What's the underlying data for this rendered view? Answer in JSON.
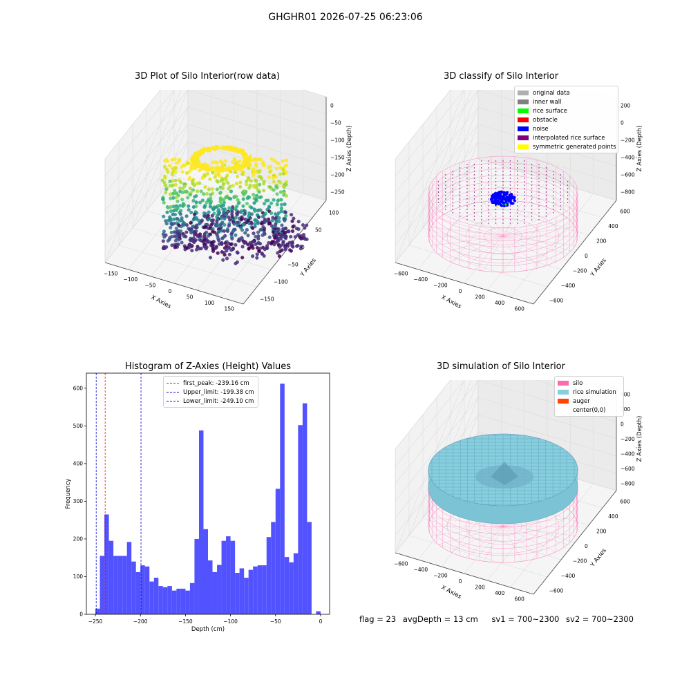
{
  "suptitle": "GHGHR01 2026-07-25 06:23:06",
  "chart_data": [
    {
      "type": "scatter",
      "title": "3D Plot of Silo Interior(row data)",
      "xlabel": "X Axies",
      "ylabel": "Y Axies",
      "zlabel": "Z Axies (Depth)",
      "xticks": [
        "−150",
        "−100",
        "−50",
        "0",
        "50",
        "100",
        "150"
      ],
      "yticks": [
        "−150",
        "−100",
        "−50",
        "0",
        "50",
        "100"
      ],
      "zticks": [
        "−250",
        "−200",
        "−150",
        "−100",
        "−50",
        "0"
      ],
      "xlim": [
        -150,
        150
      ],
      "ylim": [
        -150,
        150
      ],
      "zlim": [
        -260,
        0
      ],
      "colormap": "viridis"
    },
    {
      "type": "scatter",
      "title": "3D classify of Silo Interior",
      "xlabel": "X Axies",
      "ylabel": "Y Axies",
      "zlabel": "Z Axies (Depth)",
      "xticks": [
        "−600",
        "−400",
        "−200",
        "0",
        "200",
        "400",
        "600"
      ],
      "yticks": [
        "−600",
        "−400",
        "−200",
        "0",
        "200",
        "400",
        "600"
      ],
      "zticks": [
        "−800",
        "−600",
        "−400",
        "−200",
        "0",
        "200"
      ],
      "legend": [
        {
          "label": "original data",
          "color": "#b0b0b0"
        },
        {
          "label": "inner wall",
          "color": "#808080"
        },
        {
          "label": "rice surface",
          "color": "#00ff00"
        },
        {
          "label": "obstacle",
          "color": "#ff0000"
        },
        {
          "label": "noise",
          "color": "#0000ff"
        },
        {
          "label": "interpolated rice surface",
          "color": "#800080"
        },
        {
          "label": "symmetric generated points",
          "color": "#ffff00"
        }
      ],
      "legend_position": "top-right",
      "wall_color": "#ff69b4"
    },
    {
      "type": "bar",
      "title": "Histogram of Z-Axies (Height) Values",
      "xlabel": "Depth (cm)",
      "ylabel": "Frequency",
      "bin_edges_start": -250,
      "bin_width": 5,
      "values": [
        15,
        155,
        265,
        195,
        155,
        155,
        155,
        192,
        140,
        112,
        130,
        127,
        87,
        97,
        75,
        72,
        75,
        63,
        68,
        68,
        63,
        83,
        200,
        488,
        226,
        143,
        112,
        131,
        195,
        207,
        195,
        110,
        122,
        97,
        118,
        127,
        130,
        130,
        205,
        245,
        333,
        612,
        152,
        138,
        162,
        502,
        560,
        245,
        0,
        8
      ],
      "xlim": [
        -260,
        10
      ],
      "ylim": [
        0,
        640
      ],
      "xticks": [
        -250,
        -200,
        -150,
        -100,
        -50,
        0
      ],
      "yticks": [
        0,
        100,
        200,
        300,
        400,
        500,
        600
      ],
      "bar_color": "#4c4cff",
      "vlines": [
        {
          "label": "first_peak: -239.16 cm",
          "x": -239.16,
          "color": "#ff0000"
        },
        {
          "label": "Upper_limit: -199.38 cm",
          "x": -199.38,
          "color": "#0000cc"
        },
        {
          "label": "Lower_limit: -249.10 cm",
          "x": -249.1,
          "color": "#0000cc"
        }
      ],
      "legend_position": "top-center"
    },
    {
      "type": "surface",
      "title": "3D simulation of Silo Interior",
      "xlabel": "X Axies",
      "ylabel": "Y Axies",
      "zlabel": "Z Axies (Depth)",
      "xticks": [
        "−600",
        "−400",
        "−200",
        "0",
        "200",
        "400",
        "600"
      ],
      "yticks": [
        "−600",
        "−400",
        "−200",
        "0",
        "200",
        "400",
        "600"
      ],
      "zticks": [
        "−800",
        "−600",
        "−400",
        "−200",
        "0",
        "200",
        "400"
      ],
      "legend": [
        {
          "label": "silo",
          "color": "#ff69b4"
        },
        {
          "label": "rice simulation",
          "color": "#87cedf"
        },
        {
          "label": "auger",
          "color": "#ff4500"
        },
        {
          "label": "center(0,0)",
          "color": "#ffffff"
        }
      ],
      "legend_position": "top-right"
    }
  ],
  "footer": {
    "flag": "flag = 23",
    "avg_depth": "avgDepth = 13 cm",
    "sv1": "sv1 = 700~2300",
    "sv2": "sv2 = 700~2300"
  }
}
